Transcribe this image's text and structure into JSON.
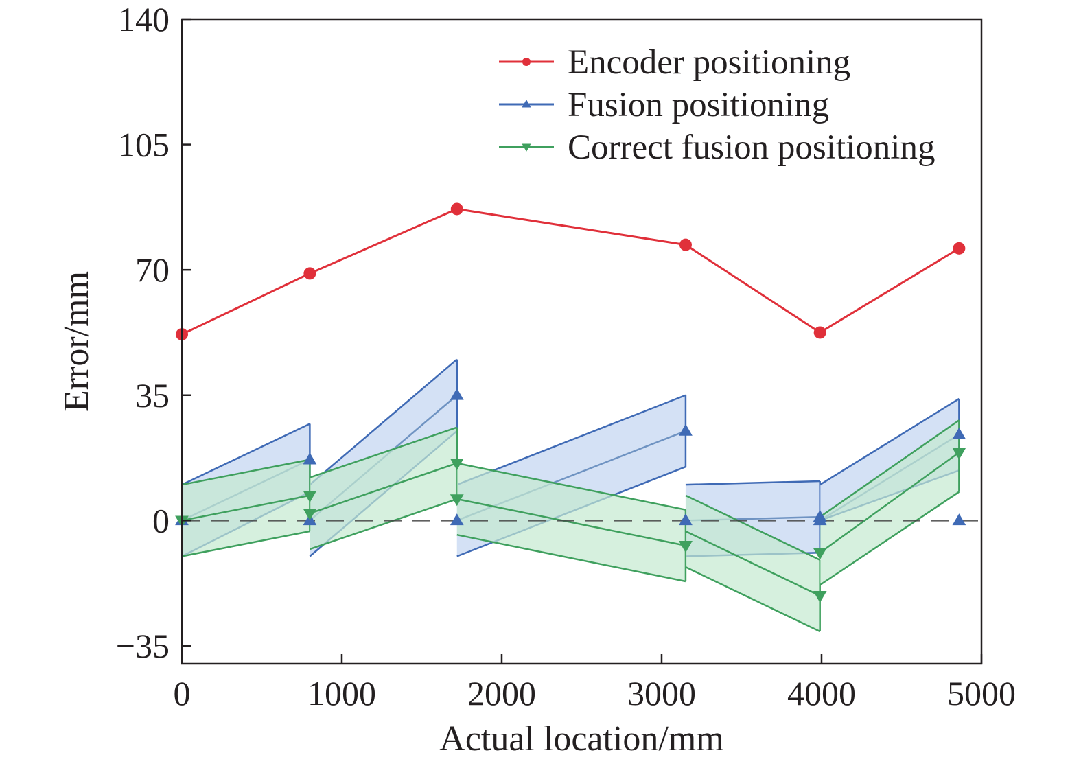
{
  "chart_data": {
    "type": "line",
    "xlabel": "Actual location/mm",
    "ylabel": "Error/mm",
    "xlim": [
      0,
      5000
    ],
    "ylim": [
      -40,
      140
    ],
    "x_ticks": [
      0,
      1000,
      2000,
      3000,
      4000,
      5000
    ],
    "y_ticks": [
      -35,
      0,
      35,
      70,
      105,
      140
    ],
    "x_tick_labels": [
      "0",
      "1000",
      "2000",
      "3000",
      "4000",
      "5000"
    ],
    "y_tick_labels": [
      "−35",
      "0",
      "35",
      "70",
      "105",
      "140"
    ],
    "grid": false,
    "legend_position": "top-right",
    "reference_line": {
      "y": 0,
      "style": "dashed"
    },
    "x": [
      0,
      800,
      1720,
      3150,
      3990,
      4860
    ],
    "series": [
      {
        "name": "Encoder positioning",
        "color": "#e0303a",
        "marker": "circle",
        "values": [
          52,
          69,
          87,
          77,
          52.5,
          76
        ]
      },
      {
        "name": "Fusion positioning",
        "color": "#3f6ab5",
        "marker": "triangle-up",
        "values": [
          0,
          0,
          0,
          0,
          0,
          0
        ],
        "error_segments": [
          {
            "x0": 0,
            "x1": 800,
            "low": [
              -10,
              8
            ],
            "mid": [
              0,
              17
            ],
            "high": [
              10,
              27
            ]
          },
          {
            "x0": 800,
            "x1": 1720,
            "low": [
              -10,
              25
            ],
            "mid": [
              0,
              35
            ],
            "high": [
              10,
              45
            ]
          },
          {
            "x0": 1720,
            "x1": 3150,
            "low": [
              -10,
              15
            ],
            "mid": [
              0,
              25
            ],
            "high": [
              10,
              35
            ]
          },
          {
            "x0": 3150,
            "x1": 3990,
            "low": [
              -10,
              -9
            ],
            "mid": [
              0,
              1
            ],
            "high": [
              10,
              11
            ]
          },
          {
            "x0": 3990,
            "x1": 4860,
            "low": [
              0,
              14
            ],
            "mid": [
              0,
              24
            ],
            "high": [
              10,
              34
            ]
          }
        ]
      },
      {
        "name": "Correct fusion positioning",
        "color": "#3fa05e",
        "marker": "triangle-down",
        "values": [
          0,
          2,
          6,
          -7,
          -9,
          19
        ],
        "error_segments": [
          {
            "x0": 0,
            "x1": 800,
            "low": [
              -10,
              -3
            ],
            "mid": [
              0,
              7
            ],
            "high": [
              10,
              17
            ]
          },
          {
            "x0": 800,
            "x1": 1720,
            "low": [
              -8,
              6
            ],
            "mid": [
              2,
              16
            ],
            "high": [
              12,
              26
            ]
          },
          {
            "x0": 1720,
            "x1": 3150,
            "low": [
              -4,
              -17
            ],
            "mid": [
              6,
              -7
            ],
            "high": [
              16,
              3
            ]
          },
          {
            "x0": 3150,
            "x1": 3990,
            "low": [
              -13,
              -31
            ],
            "mid": [
              -3,
              -21
            ],
            "high": [
              7,
              -11
            ]
          },
          {
            "x0": 3990,
            "x1": 4860,
            "low": [
              -18,
              8
            ],
            "mid": [
              -9,
              19
            ],
            "high": [
              1,
              28
            ]
          }
        ]
      }
    ]
  }
}
